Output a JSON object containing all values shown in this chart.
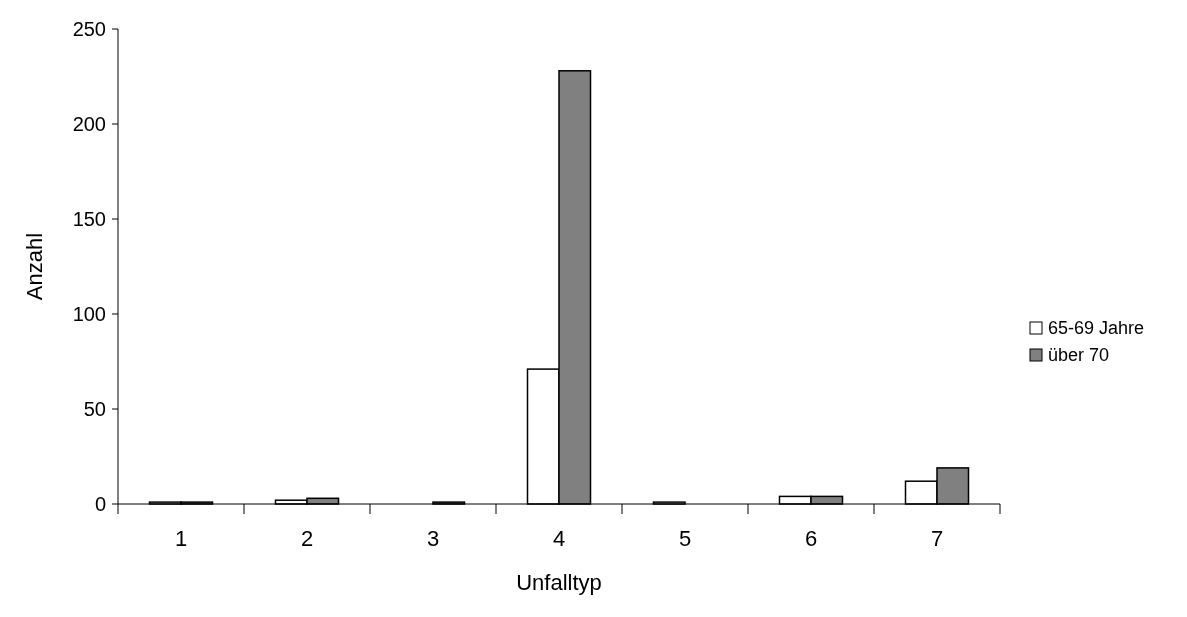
{
  "chart_data": {
    "type": "bar",
    "xlabel": "Unfalltyp",
    "ylabel": "Anzahl",
    "categories": [
      "1",
      "2",
      "3",
      "4",
      "5",
      "6",
      "7"
    ],
    "series": [
      {
        "name": "65-69 Jahre",
        "color": "#ffffff",
        "values": [
          1,
          2,
          0,
          71,
          1,
          4,
          12
        ]
      },
      {
        "name": "über 70",
        "color": "#808080",
        "values": [
          1,
          3,
          1,
          228,
          0,
          4,
          19
        ]
      }
    ],
    "ylim": [
      0,
      250
    ],
    "yticks": [
      0,
      50,
      100,
      150,
      200,
      250
    ],
    "grid": false,
    "legend": "right"
  }
}
